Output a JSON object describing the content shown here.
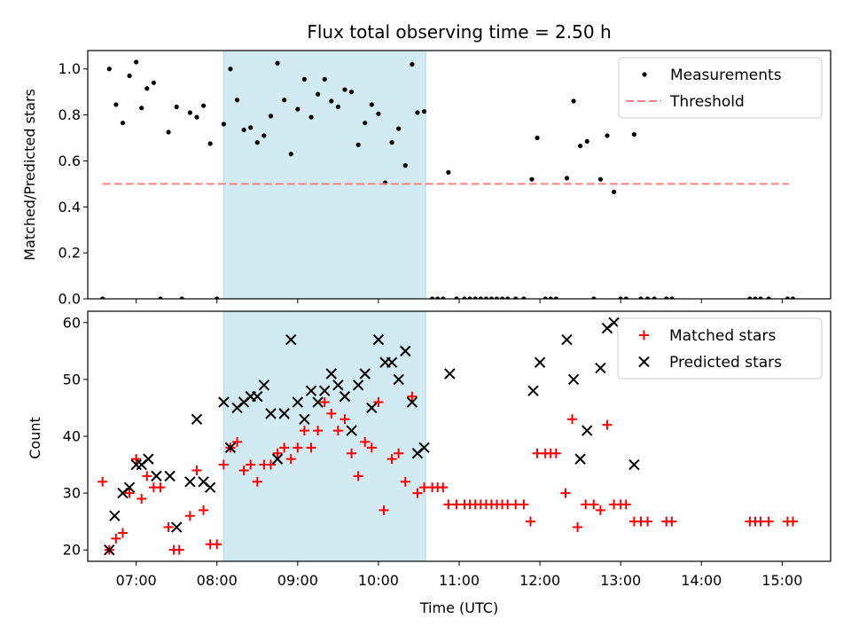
{
  "chart_data": [
    {
      "type": "scatter",
      "title": "Flux total observing time = 2.50 h",
      "xlabel": "",
      "ylabel": "Matched/Predicted stars",
      "xlim": [
        "06:24",
        "15:36"
      ],
      "ylim": [
        0,
        1.08
      ],
      "yticks": [
        "0.0",
        "0.2",
        "0.4",
        "0.6",
        "0.8",
        "1.0"
      ],
      "highlight": {
        "start": "08:05",
        "end": "10:35",
        "color": "#add8e6"
      },
      "legend_position": "top-right",
      "series": [
        {
          "name": "Measurements",
          "marker": "dot",
          "color": "#000000",
          "points": [
            [
              "06:35",
              0.0
            ],
            [
              "06:40",
              1.0
            ],
            [
              "06:45",
              0.845
            ],
            [
              "06:50",
              0.765
            ],
            [
              "06:55",
              0.97
            ],
            [
              "07:00",
              1.03
            ],
            [
              "07:04",
              0.83
            ],
            [
              "07:08",
              0.915
            ],
            [
              "07:13",
              0.94
            ],
            [
              "07:18",
              0.0
            ],
            [
              "07:24",
              0.725
            ],
            [
              "07:30",
              0.835
            ],
            [
              "07:34",
              0.0
            ],
            [
              "07:40",
              0.81
            ],
            [
              "07:45",
              0.79
            ],
            [
              "07:50",
              0.84
            ],
            [
              "07:55",
              0.675
            ],
            [
              "08:00",
              0.0
            ],
            [
              "08:05",
              0.76
            ],
            [
              "08:10",
              1.0
            ],
            [
              "08:15",
              0.865
            ],
            [
              "08:20",
              0.735
            ],
            [
              "08:25",
              0.745
            ],
            [
              "08:30",
              0.68
            ],
            [
              "08:35",
              0.71
            ],
            [
              "08:40",
              0.795
            ],
            [
              "08:45",
              1.025
            ],
            [
              "08:50",
              0.865
            ],
            [
              "08:55",
              0.63
            ],
            [
              "09:00",
              0.825
            ],
            [
              "09:05",
              0.955
            ],
            [
              "09:10",
              0.79
            ],
            [
              "09:15",
              0.89
            ],
            [
              "09:20",
              0.955
            ],
            [
              "09:25",
              0.86
            ],
            [
              "09:30",
              0.835
            ],
            [
              "09:35",
              0.91
            ],
            [
              "09:40",
              0.9
            ],
            [
              "09:45",
              0.67
            ],
            [
              "09:50",
              0.765
            ],
            [
              "09:55",
              0.845
            ],
            [
              "10:00",
              0.805
            ],
            [
              "10:05",
              0.505
            ],
            [
              "10:10",
              0.68
            ],
            [
              "10:15",
              0.74
            ],
            [
              "10:20",
              0.58
            ],
            [
              "10:25",
              1.02
            ],
            [
              "10:29",
              0.81
            ],
            [
              "10:34",
              0.815
            ],
            [
              "10:40",
              0.0
            ],
            [
              "10:44",
              0.0
            ],
            [
              "10:48",
              0.0
            ],
            [
              "10:52",
              0.55
            ],
            [
              "10:58",
              0.0
            ],
            [
              "11:04",
              0.0
            ],
            [
              "11:08",
              0.0
            ],
            [
              "11:12",
              0.0
            ],
            [
              "11:16",
              0.0
            ],
            [
              "11:20",
              0.0
            ],
            [
              "11:24",
              0.0
            ],
            [
              "11:28",
              0.0
            ],
            [
              "11:32",
              0.0
            ],
            [
              "11:36",
              0.0
            ],
            [
              "11:42",
              0.0
            ],
            [
              "11:48",
              0.0
            ],
            [
              "11:54",
              0.52
            ],
            [
              "11:58",
              0.7
            ],
            [
              "12:04",
              0.0
            ],
            [
              "12:08",
              0.0
            ],
            [
              "12:12",
              0.0
            ],
            [
              "12:20",
              0.525
            ],
            [
              "12:25",
              0.86
            ],
            [
              "12:30",
              0.665
            ],
            [
              "12:35",
              0.685
            ],
            [
              "12:40",
              0.0
            ],
            [
              "12:45",
              0.52
            ],
            [
              "12:50",
              0.71
            ],
            [
              "12:55",
              0.465
            ],
            [
              "13:00",
              0.0
            ],
            [
              "13:04",
              0.0
            ],
            [
              "13:10",
              0.715
            ],
            [
              "13:15",
              0.0
            ],
            [
              "13:20",
              0.0
            ],
            [
              "13:25",
              0.0
            ],
            [
              "13:34",
              0.0
            ],
            [
              "13:38",
              0.0
            ],
            [
              "14:36",
              0.0
            ],
            [
              "14:40",
              0.0
            ],
            [
              "14:44",
              0.0
            ],
            [
              "14:50",
              0.0
            ],
            [
              "15:04",
              0.0
            ],
            [
              "15:08",
              0.0
            ]
          ]
        },
        {
          "name": "Threshold",
          "style": "dashed-line",
          "color": "#ff8080",
          "points": [
            [
              "06:35",
              0.5
            ],
            [
              "15:05",
              0.5
            ]
          ]
        }
      ]
    },
    {
      "type": "scatter",
      "title": "",
      "xlabel": "Time (UTC)",
      "ylabel": "Count",
      "xlim": [
        "06:24",
        "15:36"
      ],
      "ylim": [
        18,
        62
      ],
      "yticks": [
        "20",
        "30",
        "40",
        "50",
        "60"
      ],
      "xticks": [
        "07:00",
        "08:00",
        "09:00",
        "10:00",
        "11:00",
        "12:00",
        "13:00",
        "14:00",
        "15:00"
      ],
      "highlight": {
        "start": "08:05",
        "end": "10:35",
        "color": "#add8e6"
      },
      "legend_position": "top-right",
      "series": [
        {
          "name": "Matched stars",
          "marker": "plus",
          "color": "#ff0000",
          "points": [
            [
              "06:35",
              32
            ],
            [
              "06:40",
              20
            ],
            [
              "06:45",
              22
            ],
            [
              "06:50",
              23
            ],
            [
              "06:55",
              30
            ],
            [
              "07:00",
              36
            ],
            [
              "07:04",
              29
            ],
            [
              "07:08",
              33
            ],
            [
              "07:13",
              31
            ],
            [
              "07:18",
              31
            ],
            [
              "07:24",
              24
            ],
            [
              "07:28",
              20
            ],
            [
              "07:32",
              20
            ],
            [
              "07:40",
              26
            ],
            [
              "07:45",
              34
            ],
            [
              "07:50",
              27
            ],
            [
              "07:55",
              21
            ],
            [
              "08:00",
              21
            ],
            [
              "08:05",
              35
            ],
            [
              "08:10",
              38
            ],
            [
              "08:15",
              39
            ],
            [
              "08:20",
              34
            ],
            [
              "08:25",
              35
            ],
            [
              "08:30",
              32
            ],
            [
              "08:35",
              35
            ],
            [
              "08:40",
              35
            ],
            [
              "08:45",
              37
            ],
            [
              "08:50",
              38
            ],
            [
              "08:55",
              36
            ],
            [
              "09:00",
              38
            ],
            [
              "09:05",
              41
            ],
            [
              "09:10",
              38
            ],
            [
              "09:15",
              41
            ],
            [
              "09:20",
              46
            ],
            [
              "09:25",
              44
            ],
            [
              "09:30",
              41
            ],
            [
              "09:35",
              43
            ],
            [
              "09:40",
              37
            ],
            [
              "09:45",
              33
            ],
            [
              "09:50",
              39
            ],
            [
              "09:55",
              38
            ],
            [
              "10:00",
              46
            ],
            [
              "10:04",
              27
            ],
            [
              "10:10",
              36
            ],
            [
              "10:15",
              37
            ],
            [
              "10:20",
              32
            ],
            [
              "10:25",
              47
            ],
            [
              "10:29",
              30
            ],
            [
              "10:34",
              31
            ],
            [
              "10:40",
              31
            ],
            [
              "10:44",
              31
            ],
            [
              "10:48",
              31
            ],
            [
              "10:52",
              28
            ],
            [
              "10:58",
              28
            ],
            [
              "11:04",
              28
            ],
            [
              "11:08",
              28
            ],
            [
              "11:12",
              28
            ],
            [
              "11:16",
              28
            ],
            [
              "11:20",
              28
            ],
            [
              "11:24",
              28
            ],
            [
              "11:28",
              28
            ],
            [
              "11:32",
              28
            ],
            [
              "11:36",
              28
            ],
            [
              "11:42",
              28
            ],
            [
              "11:48",
              28
            ],
            [
              "11:53",
              25
            ],
            [
              "11:58",
              37
            ],
            [
              "12:04",
              37
            ],
            [
              "12:08",
              37
            ],
            [
              "12:12",
              37
            ],
            [
              "12:19",
              30
            ],
            [
              "12:24",
              43
            ],
            [
              "12:28",
              24
            ],
            [
              "12:34",
              28
            ],
            [
              "12:40",
              28
            ],
            [
              "12:45",
              27
            ],
            [
              "12:50",
              42
            ],
            [
              "12:55",
              28
            ],
            [
              "13:00",
              28
            ],
            [
              "13:04",
              28
            ],
            [
              "13:10",
              25
            ],
            [
              "13:15",
              25
            ],
            [
              "13:20",
              25
            ],
            [
              "13:34",
              25
            ],
            [
              "13:38",
              25
            ],
            [
              "14:36",
              25
            ],
            [
              "14:40",
              25
            ],
            [
              "14:44",
              25
            ],
            [
              "14:50",
              25
            ],
            [
              "15:04",
              25
            ],
            [
              "15:08",
              25
            ]
          ]
        },
        {
          "name": "Predicted stars",
          "marker": "x",
          "color": "#000000",
          "points": [
            [
              "06:40",
              20
            ],
            [
              "06:44",
              26
            ],
            [
              "06:50",
              30
            ],
            [
              "06:55",
              31
            ],
            [
              "07:00",
              35
            ],
            [
              "07:04",
              35
            ],
            [
              "07:09",
              36
            ],
            [
              "07:15",
              33
            ],
            [
              "07:25",
              33
            ],
            [
              "07:30",
              24
            ],
            [
              "07:40",
              32
            ],
            [
              "07:45",
              43
            ],
            [
              "07:50",
              32
            ],
            [
              "07:55",
              31
            ],
            [
              "08:05",
              46
            ],
            [
              "08:10",
              38
            ],
            [
              "08:15",
              45
            ],
            [
              "08:20",
              46
            ],
            [
              "08:25",
              47
            ],
            [
              "08:30",
              47
            ],
            [
              "08:35",
              49
            ],
            [
              "08:40",
              44
            ],
            [
              "08:45",
              36
            ],
            [
              "08:50",
              44
            ],
            [
              "08:55",
              57
            ],
            [
              "09:00",
              46
            ],
            [
              "09:05",
              43
            ],
            [
              "09:10",
              48
            ],
            [
              "09:15",
              46
            ],
            [
              "09:20",
              48
            ],
            [
              "09:25",
              51
            ],
            [
              "09:30",
              49
            ],
            [
              "09:35",
              47
            ],
            [
              "09:40",
              41
            ],
            [
              "09:45",
              49
            ],
            [
              "09:50",
              51
            ],
            [
              "09:55",
              45
            ],
            [
              "10:00",
              57
            ],
            [
              "10:05",
              53
            ],
            [
              "10:10",
              53
            ],
            [
              "10:15",
              50
            ],
            [
              "10:20",
              55
            ],
            [
              "10:25",
              46
            ],
            [
              "10:29",
              37
            ],
            [
              "10:34",
              38
            ],
            [
              "10:53",
              51
            ],
            [
              "11:55",
              48
            ],
            [
              "12:00",
              53
            ],
            [
              "12:20",
              57
            ],
            [
              "12:25",
              50
            ],
            [
              "12:30",
              36
            ],
            [
              "12:35",
              41
            ],
            [
              "12:45",
              52
            ],
            [
              "12:50",
              59
            ],
            [
              "12:55",
              60
            ],
            [
              "13:10",
              35
            ]
          ]
        }
      ]
    }
  ]
}
